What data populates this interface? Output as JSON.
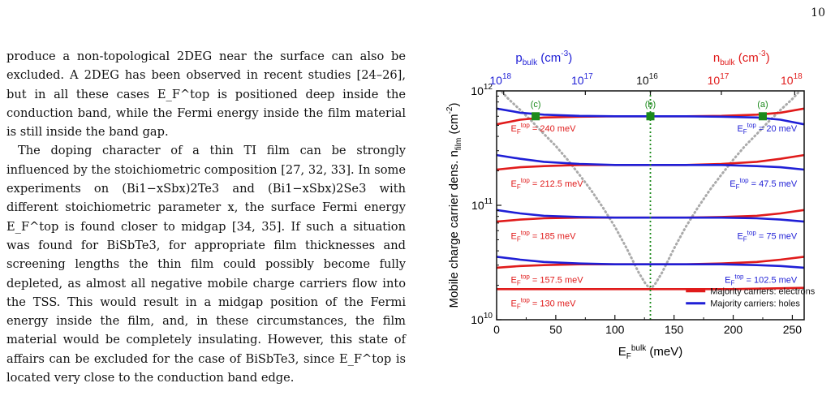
{
  "page_number": "10",
  "text_paragraphs": [
    "produce a non-topological 2DEG near the surface can also be excluded. A 2DEG has been observed in recent studies [24–26], but in all these cases E_F^top is positioned deep inside the conduction band, while the Fermi energy inside the film material is still inside the band gap.",
    "The doping character of a thin TI film can be strongly influenced by the stoichiometric composition [27, 32, 33]. In some experiments on (Bi1−xSbx)2Te3 and (Bi1−xSbx)2Se3 with different stoichiometric parameter x, the surface Fermi energy E_F^top is found closer to midgap [34, 35]. If such a situation was found for BiSbTe3, for appropriate film thicknesses and screening lengths the thin film could possibly become fully depleted, as almost all negative mobile charge carriers flow into the TSS. This would result in a midgap position of the Fermi energy inside the film, and, in these circumstances, the film material would be completely insulating. However, this state of affairs can be excluded for the case of BiSbTe3, since E_F^top is located very close to the conduction band edge."
  ],
  "chart_data": {
    "type": "line",
    "xlabel": "E_F^bulk (meV)",
    "ylabel": "Mobile charge carrier dens. n_film (cm^-2)",
    "xlim": [
      0,
      260
    ],
    "xticks": [
      0,
      50,
      100,
      150,
      200,
      250
    ],
    "ylim": [
      10000000000.0,
      1000000000000.0
    ],
    "yscale": "log",
    "yticks": [
      {
        "v": 10000000000.0,
        "b": "10",
        "e": "10"
      },
      {
        "v": 100000000000.0,
        "b": "10",
        "e": "11"
      },
      {
        "v": 1000000000000.0,
        "b": "10",
        "e": "12"
      }
    ],
    "top_axis": {
      "left_label_base": "p",
      "left_label_sub": "bulk",
      "left_label_unit": "(cm",
      "left_label_exp": "-3",
      "left_label_close": ")",
      "right_label_base": "n",
      "right_label_sub": "bulk",
      "right_label_unit": "(cm",
      "right_label_exp": "-3",
      "right_label_close": ")",
      "ticks": [
        {
          "x": 6,
          "b": "10",
          "e": "18",
          "color": "#1f1fd6"
        },
        {
          "x": 75,
          "b": "10",
          "e": "17",
          "color": "#1f1fd6"
        },
        {
          "x": 130,
          "b": "10",
          "e": "16",
          "color": "#111111"
        },
        {
          "x": 190,
          "b": "10",
          "e": "17",
          "color": "#e01b1b"
        },
        {
          "x": 252,
          "b": "10",
          "e": "18",
          "color": "#e01b1b"
        }
      ]
    },
    "series": [
      {
        "name": "Majority carriers: electrons",
        "color": "#e01b1b"
      },
      {
        "name": "Majority carriers: holes",
        "color": "#1f1fd6"
      }
    ],
    "curve_colors": {
      "electrons": "#e01b1b",
      "holes": "#1f1fd6",
      "bulk_density": "#aaaaaa",
      "marker": "#1c8a1c"
    },
    "curves": [
      {
        "kind": "electrons",
        "x": [
          0,
          20,
          40,
          70,
          100,
          130,
          160,
          190,
          220,
          240,
          260
        ],
        "y": [
          510000000000.0,
          560000000000.0,
          585000000000.0,
          595000000000.0,
          600000000000.0,
          600000000000.0,
          600000000000.0,
          605000000000.0,
          620000000000.0,
          645000000000.0,
          700000000000.0
        ]
      },
      {
        "kind": "holes",
        "x": [
          0,
          20,
          40,
          70,
          100,
          130,
          160,
          190,
          220,
          240,
          260
        ],
        "y": [
          700000000000.0,
          645000000000.0,
          620000000000.0,
          605000000000.0,
          600000000000.0,
          600000000000.0,
          600000000000.0,
          595000000000.0,
          585000000000.0,
          560000000000.0,
          510000000000.0
        ]
      },
      {
        "kind": "electrons",
        "x": [
          0,
          20,
          40,
          70,
          100,
          130,
          160,
          190,
          220,
          240,
          260
        ],
        "y": [
          205000000000.0,
          215000000000.0,
          220000000000.0,
          225000000000.0,
          225000000000.0,
          225000000000.0,
          225000000000.0,
          230000000000.0,
          240000000000.0,
          255000000000.0,
          275000000000.0
        ]
      },
      {
        "kind": "holes",
        "x": [
          0,
          20,
          40,
          70,
          100,
          130,
          160,
          190,
          220,
          240,
          260
        ],
        "y": [
          275000000000.0,
          255000000000.0,
          240000000000.0,
          230000000000.0,
          225000000000.0,
          225000000000.0,
          225000000000.0,
          225000000000.0,
          220000000000.0,
          215000000000.0,
          205000000000.0
        ]
      },
      {
        "kind": "electrons",
        "x": [
          0,
          20,
          40,
          70,
          100,
          130,
          160,
          190,
          220,
          240,
          260
        ],
        "y": [
          72000000000.0,
          75000000000.0,
          77000000000.0,
          78000000000.0,
          78000000000.0,
          78000000000.0,
          78000000000.0,
          79000000000.0,
          81000000000.0,
          85000000000.0,
          91000000000.0
        ]
      },
      {
        "kind": "holes",
        "x": [
          0,
          20,
          40,
          70,
          100,
          130,
          160,
          190,
          220,
          240,
          260
        ],
        "y": [
          91000000000.0,
          85000000000.0,
          81000000000.0,
          79000000000.0,
          78000000000.0,
          78000000000.0,
          78000000000.0,
          78000000000.0,
          77000000000.0,
          75000000000.0,
          72000000000.0
        ]
      },
      {
        "kind": "electrons",
        "x": [
          0,
          20,
          40,
          70,
          100,
          130,
          160,
          190,
          220,
          240,
          260
        ],
        "y": [
          28500000000.0,
          29500000000.0,
          30000000000.0,
          30500000000.0,
          30500000000.0,
          30500000000.0,
          30500000000.0,
          31000000000.0,
          32000000000.0,
          33500000000.0,
          35500000000.0
        ]
      },
      {
        "kind": "holes",
        "x": [
          0,
          20,
          40,
          70,
          100,
          130,
          160,
          190,
          220,
          240,
          260
        ],
        "y": [
          35500000000.0,
          33500000000.0,
          32000000000.0,
          31000000000.0,
          30500000000.0,
          30500000000.0,
          30500000000.0,
          30500000000.0,
          30000000000.0,
          29500000000.0,
          28500000000.0
        ]
      },
      {
        "kind": "electrons",
        "x": [
          0,
          50,
          100,
          130,
          160,
          200,
          260
        ],
        "y": [
          18500000000.0,
          18500000000.0,
          18500000000.0,
          18500000000.0,
          18500000000.0,
          18500000000.0,
          19000000000.0
        ]
      }
    ],
    "bulk_density_curve": {
      "x": [
        0,
        10,
        20,
        30,
        40,
        50,
        60,
        70,
        80,
        90,
        100,
        110,
        120,
        126,
        130,
        134,
        140,
        150,
        160,
        170,
        180,
        190,
        200,
        210,
        220,
        230,
        240,
        250,
        260
      ],
      "y": [
        1100000000000.0,
        850000000000.0,
        680000000000.0,
        540000000000.0,
        420000000000.0,
        330000000000.0,
        250000000000.0,
        185000000000.0,
        135000000000.0,
        95000000000.0,
        65000000000.0,
        42000000000.0,
        26000000000.0,
        20500000000.0,
        18500000000.0,
        20500000000.0,
        26000000000.0,
        42000000000.0,
        65000000000.0,
        95000000000.0,
        135000000000.0,
        185000000000.0,
        250000000000.0,
        330000000000.0,
        420000000000.0,
        540000000000.0,
        680000000000.0,
        850000000000.0,
        1100000000000.0
      ]
    },
    "vertical_line_x": 130,
    "markers": [
      {
        "label": "(c)",
        "x": 33,
        "y": 600000000000.0
      },
      {
        "label": "(b)",
        "x": 130,
        "y": 600000000000.0
      },
      {
        "label": "(a)",
        "x": 225,
        "y": 600000000000.0
      }
    ],
    "annotations_left": [
      {
        "text_pre": "E",
        "sub": "F",
        "sup": "top",
        "text_post": " = 240 meV",
        "y": 470000000000.0
      },
      {
        "text_pre": "E",
        "sub": "F",
        "sup": "top",
        "text_post": " = 212.5 meV",
        "y": 155000000000.0
      },
      {
        "text_pre": "E",
        "sub": "F",
        "sup": "top",
        "text_post": " = 185 meV",
        "y": 54000000000.0
      },
      {
        "text_pre": "E",
        "sub": "F",
        "sup": "top",
        "text_post": " = 157.5 meV",
        "y": 22500000000.0
      },
      {
        "text_pre": "E",
        "sub": "F",
        "sup": "top",
        "text_post": " = 130 meV",
        "y": 14000000000.0
      }
    ],
    "annotations_right": [
      {
        "text_pre": "E",
        "sub": "F",
        "sup": "top",
        "text_post": " = 20 meV",
        "y": 470000000000.0
      },
      {
        "text_pre": "E",
        "sub": "F",
        "sup": "top",
        "text_post": " = 47.5 meV",
        "y": 155000000000.0
      },
      {
        "text_pre": "E",
        "sub": "F",
        "sup": "top",
        "text_post": " = 75 meV",
        "y": 54000000000.0
      },
      {
        "text_pre": "E",
        "sub": "F",
        "sup": "top",
        "text_post": " = 102.5 meV",
        "y": 22500000000.0
      }
    ]
  }
}
